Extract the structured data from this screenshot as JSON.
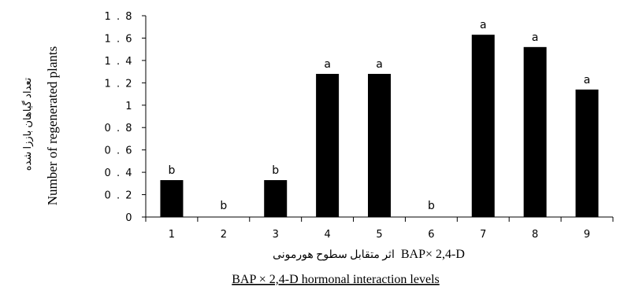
{
  "chart_data": {
    "type": "bar",
    "categories": [
      "1",
      "2",
      "3",
      "4",
      "5",
      "6",
      "7",
      "8",
      "9"
    ],
    "values": [
      0.33,
      0,
      0.33,
      1.28,
      1.28,
      0,
      1.63,
      1.52,
      1.14
    ],
    "significance_letters": [
      "b",
      "b",
      "b",
      "a",
      "a",
      "b",
      "a",
      "a",
      "a"
    ],
    "yticks": [
      "0",
      "0 . 2",
      "0 . 4",
      "0 . 6",
      "0 . 8",
      "1",
      "1 . 2",
      "1 . 4",
      "1 . 6",
      "1 . 8"
    ],
    "ylim": [
      0,
      1.8
    ],
    "xlabel_fa": "اثر متقابل سطوح هورمونی",
    "xlabel_fa_suffix": "BAP× 2,4-D",
    "xlabel": "BAP × 2,4-D hormonal interaction levels",
    "ylabel_fa": "تعداد گیاهان باززا شده",
    "ylabel": "Number of  regenerated plants",
    "bar_color": "#000000",
    "grid": false
  }
}
